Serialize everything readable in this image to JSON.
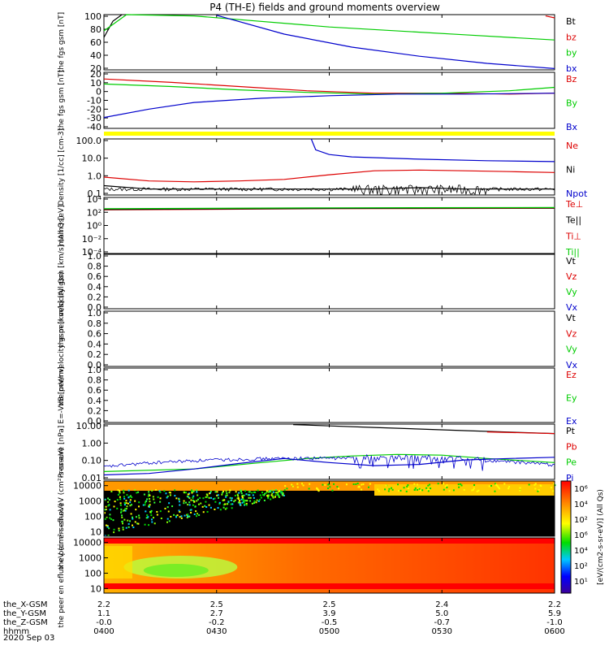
{
  "title": "P4 (TH-E) fields and ground moments overview",
  "date_label": "2020 Sep 03",
  "orbit_rows": [
    {
      "label": "the_X-GSM",
      "values": [
        "2.2",
        "2.5",
        "2.5",
        "2.4",
        "2.2"
      ]
    },
    {
      "label": "the_Y-GSM",
      "values": [
        "1.1",
        "2.7",
        "3.9",
        "5.0",
        "5.9"
      ]
    },
    {
      "label": "the_Z-GSM",
      "values": [
        "-0.0",
        "-0.2",
        "-0.5",
        "-0.7",
        "-1.0"
      ]
    },
    {
      "label": "hhmm",
      "values": [
        "0400",
        "0430",
        "0500",
        "0530",
        "0600"
      ]
    }
  ],
  "colors": {
    "black": "#000000",
    "red": "#dd0000",
    "green": "#00cc00",
    "blue": "#0000cc",
    "yellow": "#ffff00"
  },
  "colorbar": {
    "label": "[eV/(cm2-s-sr-eV)] (All Qs)",
    "ticks": [
      "10⁶",
      "10⁴",
      "10²",
      "10⁶",
      "10⁴",
      "10²",
      "10¹"
    ]
  },
  "chart_data": [
    {
      "type": "line",
      "ylabel": "the fgs gsm [nT]",
      "yticks": [
        "100",
        "80",
        "60",
        "40",
        "20"
      ],
      "ylim": [
        20,
        105
      ],
      "legend": [
        {
          "text": "Bt",
          "color": "#000000"
        },
        {
          "text": "bz",
          "color": "#dd0000"
        },
        {
          "text": "by",
          "color": "#00cc00"
        },
        {
          "text": "bx",
          "color": "#0000cc"
        }
      ],
      "series": [
        {
          "name": "Bt",
          "color": "#000000",
          "x": [
            0,
            0.02,
            0.04
          ],
          "y": [
            70,
            95,
            105
          ]
        },
        {
          "name": "bz",
          "color": "#dd0000",
          "x": [
            0.98,
            1.0
          ],
          "y": [
            103,
            100
          ]
        },
        {
          "name": "by",
          "color": "#00cc00",
          "x": [
            0,
            0.05,
            0.2,
            0.5,
            0.8,
            1.0
          ],
          "y": [
            80,
            105,
            103,
            86,
            74,
            66
          ]
        },
        {
          "name": "bx",
          "color": "#0000cc",
          "x": [
            0.25,
            0.4,
            0.55,
            0.7,
            0.85,
            1.0
          ],
          "y": [
            104,
            75,
            55,
            41,
            30,
            22
          ]
        }
      ]
    },
    {
      "type": "line",
      "ylabel": "the fgs gsm [nT]",
      "yticks": [
        "20",
        "10",
        "0",
        "-10",
        "-20",
        "-30",
        "-40"
      ],
      "ylim": [
        -45,
        22
      ],
      "legend": [
        {
          "text": "Bz",
          "color": "#dd0000"
        },
        {
          "text": "By",
          "color": "#00cc00"
        },
        {
          "text": "Bx",
          "color": "#0000cc"
        }
      ],
      "series": [
        {
          "name": "Bz",
          "color": "#dd0000",
          "x": [
            0,
            0.15,
            0.3,
            0.45,
            0.6,
            0.75,
            0.9,
            1.0
          ],
          "y": [
            14,
            10,
            5,
            0,
            -3,
            -3,
            -4,
            -3
          ]
        },
        {
          "name": "By",
          "color": "#00cc00",
          "x": [
            0,
            0.15,
            0.3,
            0.45,
            0.6,
            0.75,
            0.9,
            1.0
          ],
          "y": [
            8,
            5,
            1,
            -2,
            -4,
            -3,
            0,
            4
          ]
        },
        {
          "name": "Bx",
          "color": "#0000cc",
          "x": [
            0,
            0.1,
            0.2,
            0.35,
            0.5,
            0.65,
            0.8,
            1.0
          ],
          "y": [
            -32,
            -22,
            -14,
            -9,
            -6,
            -4,
            -4,
            -3
          ]
        }
      ]
    },
    {
      "type": "line",
      "log": true,
      "ylabel": "Density [1/cc] [cm-3]",
      "yticks": [
        "100.0",
        "10.0",
        "1.0",
        "0.1"
      ],
      "ylim": [
        0.05,
        200
      ],
      "legend": [
        {
          "text": "Ne",
          "color": "#dd0000"
        },
        {
          "text": "Ni",
          "color": "#000000"
        },
        {
          "text": "Npot",
          "color": "#0000cc"
        }
      ],
      "series": [
        {
          "name": "Ne",
          "color": "#dd0000",
          "x": [
            0,
            0.1,
            0.2,
            0.3,
            0.4,
            0.5,
            0.6,
            0.7,
            0.8,
            0.9,
            1.0
          ],
          "y": [
            0.7,
            0.4,
            0.35,
            0.4,
            0.5,
            1.0,
            1.8,
            2.0,
            1.8,
            1.6,
            1.4
          ]
        },
        {
          "name": "Ni",
          "color": "#000000",
          "x": [
            0,
            0.1,
            0.2,
            0.3,
            0.4,
            0.5,
            0.6,
            0.7,
            0.8,
            0.9,
            1.0
          ],
          "y": [
            0.2,
            0.12,
            0.12,
            0.12,
            0.12,
            0.12,
            0.12,
            0.15,
            0.12,
            0.12,
            0.12
          ]
        },
        {
          "name": "Npot",
          "color": "#0000cc",
          "x": [
            0.46,
            0.47,
            0.5,
            0.55,
            0.7,
            0.85,
            1.0
          ],
          "y": [
            200,
            40,
            20,
            14,
            10,
            8,
            7
          ]
        }
      ]
    },
    {
      "type": "line",
      "log": true,
      "ylabel": "mom3 [eV]",
      "yticks": [
        "10⁴",
        "10²",
        "10⁰",
        "10⁻²",
        "10⁻⁴"
      ],
      "ylim": [
        0.0001,
        30000
      ],
      "legend": [
        {
          "text": "Te⊥",
          "color": "#dd0000"
        },
        {
          "text": "Te||",
          "color": "#000000"
        },
        {
          "text": "Ti⊥",
          "color": "#dd0000"
        },
        {
          "text": "Ti||",
          "color": "#00cc00"
        }
      ],
      "series": [
        {
          "name": "Te⊥",
          "color": "#dd0000",
          "x": [
            0,
            0.5,
            1.0
          ],
          "y": [
            400,
            600,
            700
          ]
        },
        {
          "name": "Te||",
          "color": "#000000",
          "x": [
            0,
            0.5,
            1.0
          ],
          "y": [
            450,
            650,
            750
          ]
        },
        {
          "name": "Ti||",
          "color": "#00cc00",
          "x": [
            0,
            0.5,
            1.0
          ],
          "y": [
            600,
            800,
            900
          ]
        }
      ]
    },
    {
      "type": "line",
      "ylabel": "the peir velocity gsm [km/s] (All Qs)",
      "yticks": [
        "1.0",
        "0.8",
        "0.6",
        "0.4",
        "0.2",
        "0.0"
      ],
      "ylim": [
        0,
        1
      ],
      "legend": [
        {
          "text": "Vt",
          "color": "#000000"
        },
        {
          "text": "Vz",
          "color": "#dd0000"
        },
        {
          "text": "Vy",
          "color": "#00cc00"
        },
        {
          "text": "Vx",
          "color": "#0000cc"
        }
      ],
      "series": []
    },
    {
      "type": "line",
      "ylabel": "the peer velocity gsm [km/s] (All Qs)",
      "yticks": [
        "1.0",
        "0.8",
        "0.6",
        "0.4",
        "0.2",
        "0.0"
      ],
      "ylim": [
        0,
        1
      ],
      "legend": [
        {
          "text": "Vt",
          "color": "#000000"
        },
        {
          "text": "Vz",
          "color": "#dd0000"
        },
        {
          "text": "Vy",
          "color": "#00cc00"
        },
        {
          "text": "Vx",
          "color": "#0000cc"
        }
      ],
      "series": []
    },
    {
      "type": "line",
      "ylabel": "E=-VxB [mV/m]",
      "yticks": [
        "1.0",
        "0.8",
        "0.6",
        "0.4",
        "0.2",
        "0.0"
      ],
      "ylim": [
        0,
        1
      ],
      "legend": [
        {
          "text": "Ez",
          "color": "#dd0000"
        },
        {
          "text": "Ey",
          "color": "#00cc00"
        },
        {
          "text": "Ex",
          "color": "#0000cc"
        }
      ],
      "series": []
    },
    {
      "type": "line",
      "log": true,
      "ylabel": "Pressure [nPa]",
      "yticks": [
        "10.00",
        "1.00",
        "0.10",
        "0.01"
      ],
      "ylim": [
        0.006,
        30
      ],
      "legend": [
        {
          "text": "Pt",
          "color": "#000000"
        },
        {
          "text": "Pb",
          "color": "#dd0000"
        },
        {
          "text": "Pe",
          "color": "#00cc00"
        },
        {
          "text": "Pi",
          "color": "#0000cc"
        }
      ],
      "series": [
        {
          "name": "Pt",
          "color": "#000000",
          "x": [
            0.42,
            0.6,
            0.8,
            1.0
          ],
          "y": [
            28,
            18,
            11,
            7
          ]
        },
        {
          "name": "Pb",
          "color": "#dd0000",
          "x": [
            0.85,
            1.0
          ],
          "y": [
            9,
            7
          ]
        },
        {
          "name": "Pe",
          "color": "#00cc00",
          "x": [
            0,
            0.2,
            0.35,
            0.45,
            0.55,
            0.65,
            0.75,
            0.85,
            1.0
          ],
          "y": [
            0.02,
            0.03,
            0.08,
            0.15,
            0.22,
            0.28,
            0.25,
            0.15,
            0.08
          ]
        },
        {
          "name": "Pi",
          "color": "#0000cc",
          "x": [
            0,
            0.1,
            0.2,
            0.3,
            0.4,
            0.5,
            0.6,
            0.7,
            0.8,
            0.9,
            1.0
          ],
          "y": [
            0.012,
            0.015,
            0.03,
            0.07,
            0.15,
            0.08,
            0.05,
            0.06,
            0.12,
            0.15,
            0.18
          ]
        }
      ]
    },
    {
      "type": "heatmap",
      "ylabel": "the peir en eflux eV (cm²-s-sr-eV)",
      "yticks": [
        "10000",
        "1000",
        "100",
        "10"
      ],
      "ylim": [
        5,
        20000
      ]
    },
    {
      "type": "heatmap",
      "ylabel": "the peer en eflux eV (cm²-s-sr-eV)",
      "yticks": [
        "10000",
        "1000",
        "100",
        "10"
      ],
      "ylim": [
        5,
        20000
      ]
    }
  ]
}
